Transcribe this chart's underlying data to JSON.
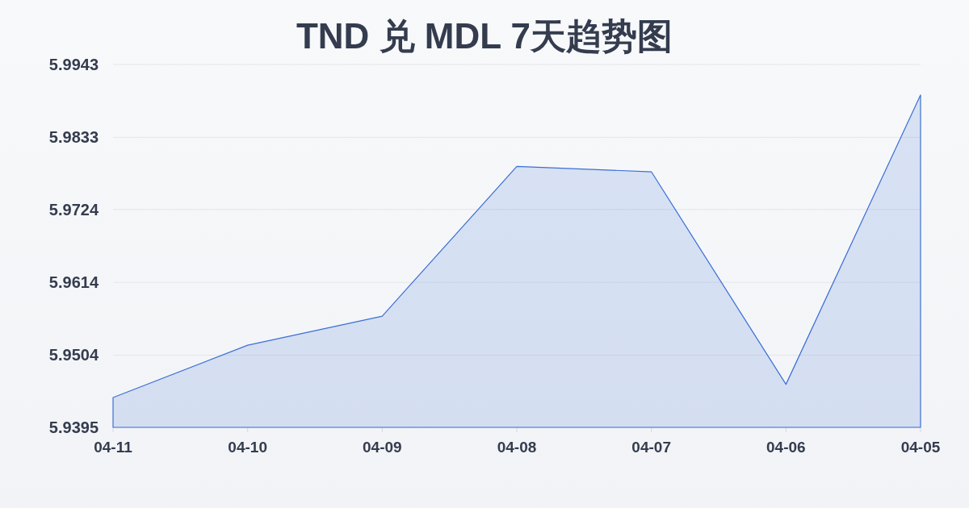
{
  "chart_data": {
    "type": "area",
    "title": "TND 兑 MDL 7天趋势图",
    "categories": [
      "04-11",
      "04-10",
      "04-09",
      "04-08",
      "04-07",
      "04-06",
      "04-05"
    ],
    "values": [
      5.944,
      5.9519,
      5.9563,
      5.9789,
      5.9781,
      5.946,
      5.9897
    ],
    "color": "#3b6fd4",
    "ylim": [
      5.9395,
      5.9943
    ],
    "yticks": [
      5.9395,
      5.9504,
      5.9614,
      5.9724,
      5.9833,
      5.9943
    ],
    "grid": "y"
  }
}
